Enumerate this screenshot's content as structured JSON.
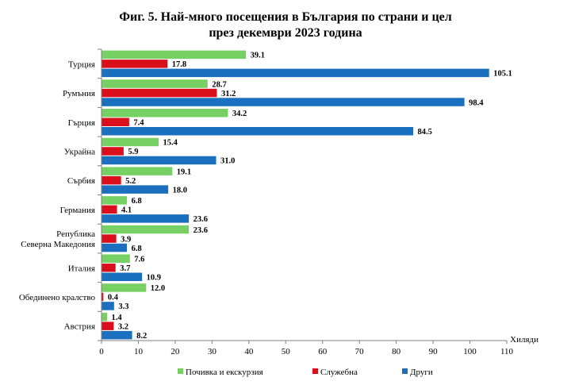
{
  "chart_data": {
    "type": "bar",
    "orientation": "horizontal",
    "title_line1": "Фиг. 5. Най-много посещения в България по страни и цел",
    "title_line2": "през декември 2023 година",
    "xlabel": "Хиляди",
    "xlim": [
      0,
      110
    ],
    "xticks": [
      0,
      10,
      20,
      30,
      40,
      50,
      60,
      70,
      80,
      90,
      100,
      110
    ],
    "grid": false,
    "legend_position": "bottom",
    "categories": [
      [
        "Турция"
      ],
      [
        "Румъния"
      ],
      [
        "Гърция"
      ],
      [
        "Украйна"
      ],
      [
        "Сърбия"
      ],
      [
        "Германия"
      ],
      [
        "Република",
        "Северна Македония"
      ],
      [
        "Италия"
      ],
      [
        "Обединено кралство"
      ],
      [
        "Австрия"
      ]
    ],
    "series": [
      {
        "name": "Почивка и екскурзия",
        "color": "#77d063",
        "values": [
          39.1,
          28.7,
          34.2,
          15.4,
          19.1,
          6.8,
          23.6,
          7.6,
          12.0,
          1.4
        ]
      },
      {
        "name": "Служебна",
        "color": "#d9101c",
        "values": [
          17.8,
          31.2,
          7.4,
          5.9,
          5.2,
          4.1,
          3.9,
          3.7,
          0.4,
          3.2
        ]
      },
      {
        "name": "Други",
        "color": "#1a6fbf",
        "values": [
          105.1,
          98.4,
          84.5,
          31.0,
          18.0,
          23.6,
          6.8,
          10.9,
          3.3,
          8.2
        ]
      }
    ]
  }
}
